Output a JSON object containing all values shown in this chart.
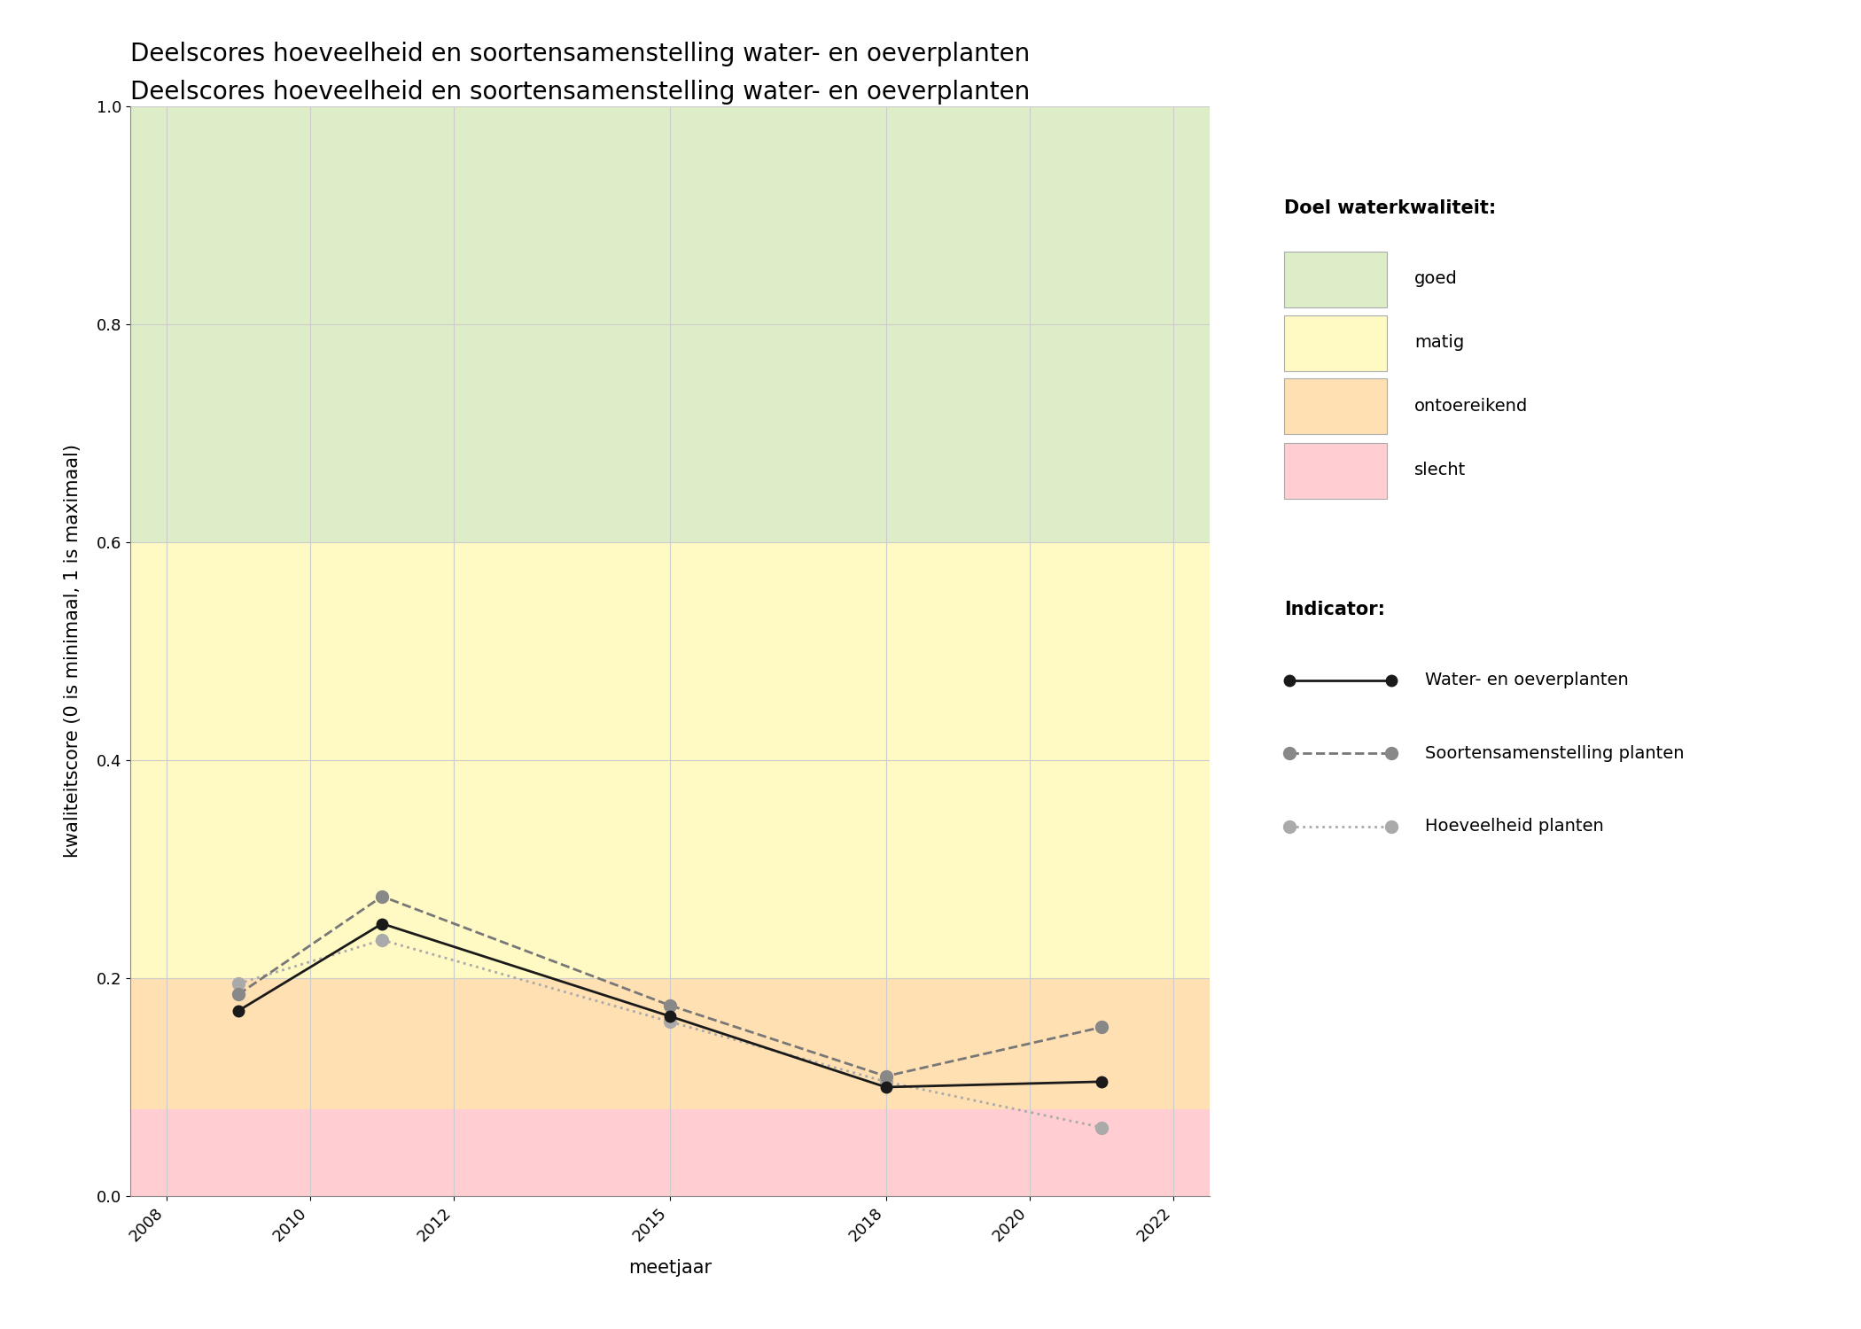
{
  "title": "Deelscores hoeveelheid en soortensamenstelling water- en oeverplanten",
  "xlabel": "meetjaar",
  "ylabel": "kwaliteitscore (0 is minimaal, 1 is maximaal)",
  "xlim": [
    2007.5,
    2022.5
  ],
  "ylim": [
    0.0,
    1.0
  ],
  "xticks": [
    2008,
    2010,
    2012,
    2015,
    2018,
    2020,
    2022
  ],
  "yticks": [
    0.0,
    0.2,
    0.4,
    0.6,
    0.8,
    1.0
  ],
  "bg_bands": [
    {
      "ymin": 0.0,
      "ymax": 0.08,
      "color": "#ffcdd2",
      "label": "slecht"
    },
    {
      "ymin": 0.08,
      "ymax": 0.2,
      "color": "#ffe0b2",
      "label": "ontoereikend"
    },
    {
      "ymin": 0.2,
      "ymax": 0.6,
      "color": "#fff9c4",
      "label": "matig"
    },
    {
      "ymin": 0.6,
      "ymax": 1.0,
      "color": "#dcedc8",
      "label": "goed"
    }
  ],
  "series": [
    {
      "name": "Water- en oeverplanten",
      "years": [
        2009,
        2011,
        2015,
        2018,
        2021
      ],
      "values": [
        0.17,
        0.25,
        0.165,
        0.1,
        0.105
      ],
      "color": "#1a1a1a",
      "linestyle": "solid",
      "linewidth": 2.0,
      "marker": "o",
      "markersize": 9,
      "markerfacecolor": "#1a1a1a",
      "markeredgecolor": "#1a1a1a",
      "zorder": 5
    },
    {
      "name": "Soortensamenstelling planten",
      "years": [
        2009,
        2011,
        2015,
        2018,
        2021
      ],
      "values": [
        0.185,
        0.275,
        0.175,
        0.11,
        0.155
      ],
      "color": "#777777",
      "linestyle": "dashed",
      "linewidth": 2.0,
      "marker": "o",
      "markersize": 10,
      "markerfacecolor": "#888888",
      "markeredgecolor": "#888888",
      "zorder": 4
    },
    {
      "name": "Hoeveelheid planten",
      "years": [
        2009,
        2011,
        2015,
        2018,
        2021
      ],
      "values": [
        0.195,
        0.235,
        0.16,
        0.105,
        0.063
      ],
      "color": "#aaaaaa",
      "linestyle": "dotted",
      "linewidth": 2.0,
      "marker": "o",
      "markersize": 10,
      "markerfacecolor": "#aaaaaa",
      "markeredgecolor": "#aaaaaa",
      "zorder": 3
    }
  ],
  "legend_title_quality": "Doel waterkwaliteit:",
  "legend_title_indicator": "Indicator:",
  "background_color": "#ffffff",
  "figure_background": "#ffffff",
  "grid_color": "#cccccc",
  "grid_alpha": 1.0,
  "title_fontsize": 20,
  "axis_label_fontsize": 15,
  "tick_fontsize": 13,
  "legend_fontsize": 14
}
